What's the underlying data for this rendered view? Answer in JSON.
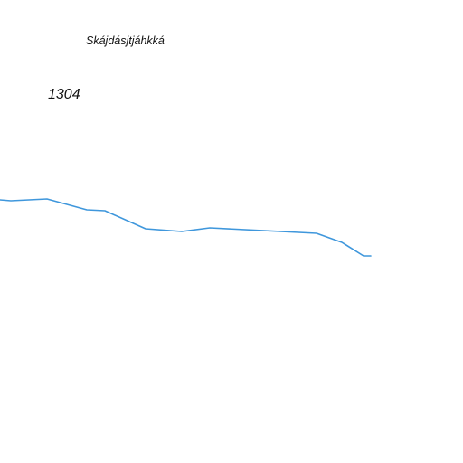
{
  "map": {
    "place_name": "Skájdásjtjáhkká",
    "elevation": "1304",
    "water_color": "#3f97dc",
    "background_color": "#ffffff"
  }
}
